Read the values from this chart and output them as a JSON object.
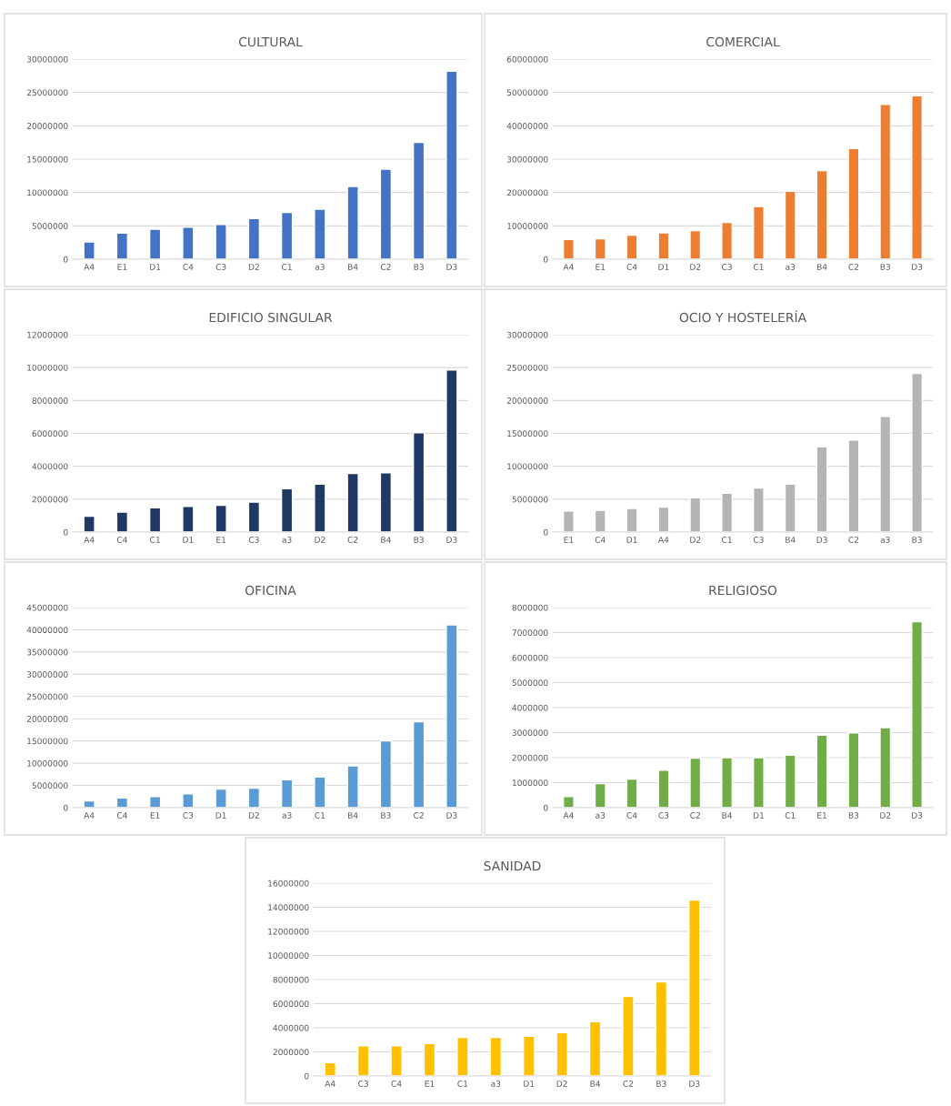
{
  "chart_data": [
    {
      "type": "bar",
      "title": "CULTURAL",
      "categories": [
        "A4",
        "E1",
        "D1",
        "C4",
        "C3",
        "D2",
        "C1",
        "a3",
        "B4",
        "C2",
        "B3",
        "D3"
      ],
      "values": [
        2600000,
        3900000,
        4500000,
        4800000,
        5200000,
        6100000,
        7000000,
        7500000,
        10900000,
        13500000,
        17500000,
        28200000
      ],
      "color": "#4472c4",
      "ylim": [
        0,
        30000000
      ],
      "yticks": [
        0,
        5000000,
        10000000,
        15000000,
        20000000,
        25000000,
        30000000
      ],
      "grid": "y"
    },
    {
      "type": "bar",
      "title": "COMERCIAL",
      "categories": [
        "A4",
        "E1",
        "C4",
        "D1",
        "D2",
        "C3",
        "C1",
        "a3",
        "B4",
        "C2",
        "B3",
        "D3"
      ],
      "values": [
        5900000,
        6100000,
        7200000,
        7900000,
        8600000,
        11000000,
        15800000,
        20400000,
        26600000,
        33200000,
        46400000,
        49000000
      ],
      "color": "#ed7d31",
      "ylim": [
        0,
        60000000
      ],
      "yticks": [
        0,
        10000000,
        20000000,
        30000000,
        40000000,
        50000000,
        60000000
      ],
      "grid": "y"
    },
    {
      "type": "bar",
      "title": "EDIFICIO SINGULAR",
      "categories": [
        "A4",
        "C4",
        "C1",
        "D1",
        "E1",
        "C3",
        "a3",
        "D2",
        "C2",
        "B4",
        "B3",
        "D3"
      ],
      "values": [
        960000,
        1220000,
        1480000,
        1560000,
        1630000,
        1820000,
        2640000,
        2910000,
        3560000,
        3600000,
        6040000,
        9860000
      ],
      "color": "#203864",
      "ylim": [
        0,
        12000000
      ],
      "yticks": [
        0,
        2000000,
        4000000,
        6000000,
        8000000,
        10000000,
        12000000
      ],
      "grid": "y"
    },
    {
      "type": "bar",
      "title": "OCIO Y HOSTELERÍA",
      "categories": [
        "E1",
        "C4",
        "D1",
        "A4",
        "D2",
        "C1",
        "C3",
        "B4",
        "D3",
        "C2",
        "a3",
        "B3"
      ],
      "values": [
        3200000,
        3300000,
        3600000,
        3800000,
        5200000,
        5900000,
        6700000,
        7300000,
        13000000,
        14000000,
        17600000,
        24100000
      ],
      "color": "#b4b4b4",
      "ylim": [
        0,
        30000000
      ],
      "yticks": [
        0,
        5000000,
        10000000,
        15000000,
        20000000,
        25000000,
        30000000
      ],
      "grid": "y"
    },
    {
      "type": "bar",
      "title": "OFICINA",
      "categories": [
        "A4",
        "C4",
        "E1",
        "C3",
        "D1",
        "D2",
        "a3",
        "C1",
        "B4",
        "B3",
        "C2",
        "D3"
      ],
      "values": [
        1500000,
        2200000,
        2500000,
        3100000,
        4200000,
        4400000,
        6300000,
        6900000,
        9400000,
        15000000,
        19300000,
        41100000
      ],
      "color": "#5b9bd5",
      "ylim": [
        0,
        45000000
      ],
      "yticks": [
        0,
        5000000,
        10000000,
        15000000,
        20000000,
        25000000,
        30000000,
        35000000,
        40000000,
        45000000
      ],
      "grid": "y"
    },
    {
      "type": "bar",
      "title": "RELIGIOSO",
      "categories": [
        "A4",
        "a3",
        "C4",
        "C3",
        "C2",
        "B4",
        "D1",
        "C1",
        "E1",
        "B3",
        "D2",
        "D3"
      ],
      "values": [
        440000,
        960000,
        1140000,
        1500000,
        1980000,
        2000000,
        2000000,
        2100000,
        2900000,
        2990000,
        3200000,
        7430000
      ],
      "color": "#70ad47",
      "ylim": [
        0,
        8000000
      ],
      "yticks": [
        0,
        1000000,
        2000000,
        3000000,
        4000000,
        5000000,
        6000000,
        7000000,
        8000000
      ],
      "grid": "y"
    },
    {
      "type": "bar",
      "title": "SANIDAD",
      "categories": [
        "A4",
        "C3",
        "C4",
        "E1",
        "C1",
        "a3",
        "D1",
        "D2",
        "B4",
        "C2",
        "B3",
        "D3"
      ],
      "values": [
        1100000,
        2500000,
        2500000,
        2700000,
        3200000,
        3200000,
        3300000,
        3600000,
        4500000,
        6600000,
        7800000,
        14600000
      ],
      "color": "#ffc000",
      "ylim": [
        0,
        16000000
      ],
      "yticks": [
        0,
        2000000,
        4000000,
        6000000,
        8000000,
        10000000,
        12000000,
        14000000,
        16000000
      ],
      "grid": "y"
    }
  ]
}
